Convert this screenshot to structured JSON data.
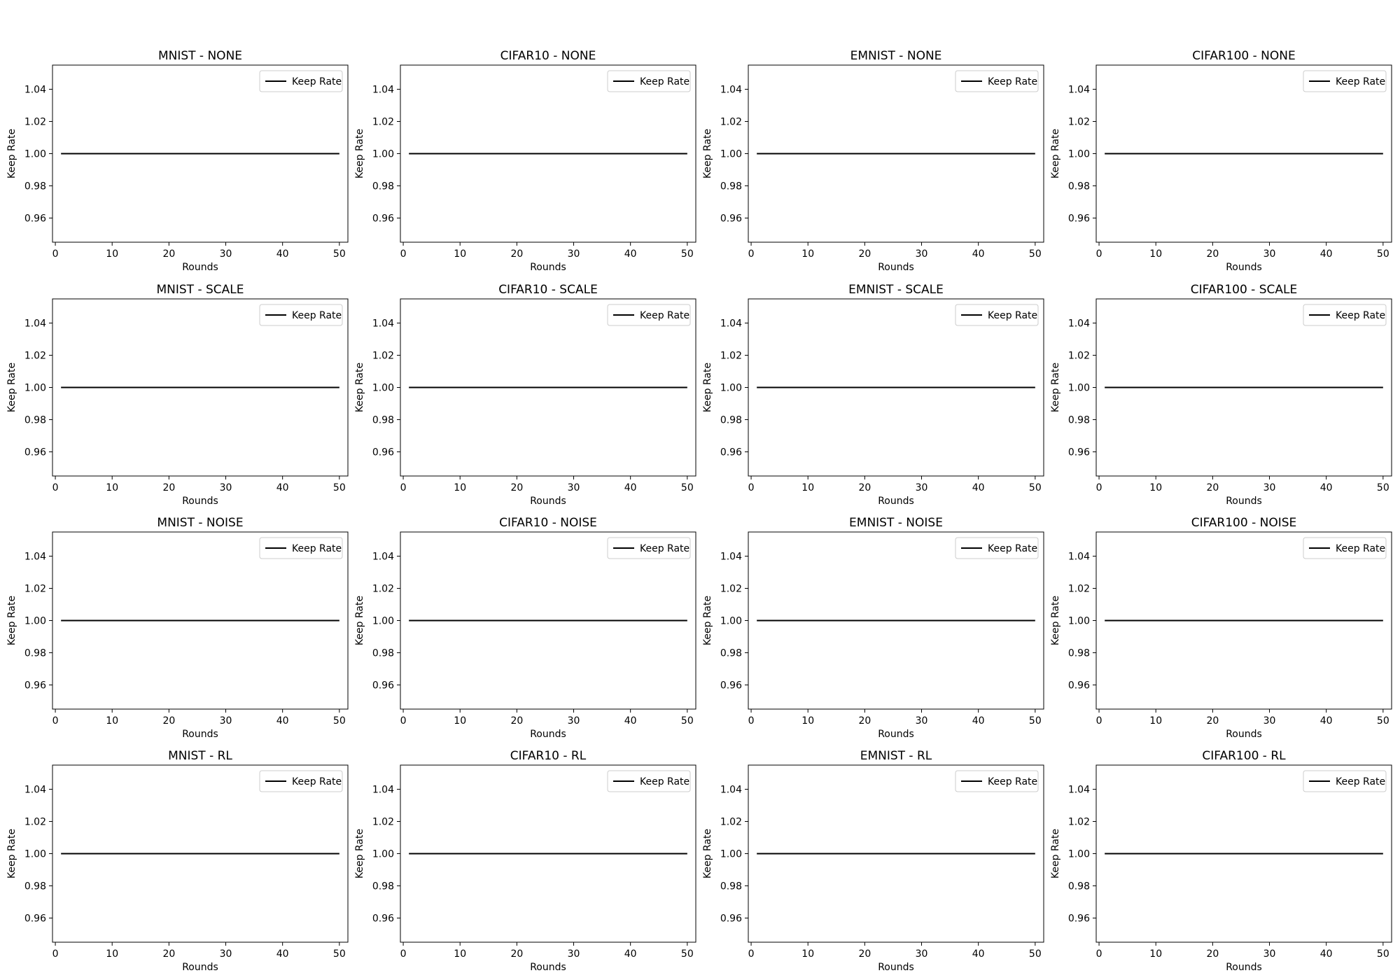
{
  "figure": {
    "background": "#ffffff",
    "line_color": "#000000"
  },
  "chart_data": [
    {
      "type": "line",
      "title": "MNIST - NONE",
      "xlabel": "Rounds",
      "ylabel": "Keep Rate",
      "xlim": [
        -0.5,
        51.5
      ],
      "ylim": [
        0.945,
        1.055
      ],
      "xticks": [
        "0",
        "10",
        "20",
        "30",
        "40",
        "50"
      ],
      "yticks": [
        "0.96",
        "0.98",
        "1.00",
        "1.02",
        "1.04"
      ],
      "legend": "top-right",
      "grid": false,
      "series": [
        {
          "name": "Keep Rate",
          "x": [
            1,
            50
          ],
          "y": [
            1.0,
            1.0
          ],
          "color": "#000000",
          "note_x_range": "rounds 1 to 50"
        }
      ]
    },
    {
      "type": "line",
      "title": "CIFAR10 - NONE",
      "xlabel": "Rounds",
      "ylabel": "Keep Rate",
      "xlim": [
        -0.5,
        51.5
      ],
      "ylim": [
        0.945,
        1.055
      ],
      "xticks": [
        "0",
        "10",
        "20",
        "30",
        "40",
        "50"
      ],
      "yticks": [
        "0.96",
        "0.98",
        "1.00",
        "1.02",
        "1.04"
      ],
      "legend": "top-right",
      "grid": false,
      "series": [
        {
          "name": "Keep Rate",
          "x": [
            1,
            50
          ],
          "y": [
            1.0,
            1.0
          ],
          "color": "#000000"
        }
      ]
    },
    {
      "type": "line",
      "title": "EMNIST - NONE",
      "xlabel": "Rounds",
      "ylabel": "Keep Rate",
      "xlim": [
        -0.5,
        51.5
      ],
      "ylim": [
        0.945,
        1.055
      ],
      "xticks": [
        "0",
        "10",
        "20",
        "30",
        "40",
        "50"
      ],
      "yticks": [
        "0.96",
        "0.98",
        "1.00",
        "1.02",
        "1.04"
      ],
      "legend": "top-right",
      "grid": false,
      "series": [
        {
          "name": "Keep Rate",
          "x": [
            1,
            50
          ],
          "y": [
            1.0,
            1.0
          ],
          "color": "#000000"
        }
      ]
    },
    {
      "type": "line",
      "title": "CIFAR100 - NONE",
      "xlabel": "Rounds",
      "ylabel": "Keep Rate",
      "xlim": [
        -0.5,
        51.5
      ],
      "ylim": [
        0.945,
        1.055
      ],
      "xticks": [
        "0",
        "10",
        "20",
        "30",
        "40",
        "50"
      ],
      "yticks": [
        "0.96",
        "0.98",
        "1.00",
        "1.02",
        "1.04"
      ],
      "legend": "top-right",
      "grid": false,
      "series": [
        {
          "name": "Keep Rate",
          "x": [
            1,
            50
          ],
          "y": [
            1.0,
            1.0
          ],
          "color": "#000000"
        }
      ]
    },
    {
      "type": "line",
      "title": "MNIST - SCALE",
      "xlabel": "Rounds",
      "ylabel": "Keep Rate",
      "xlim": [
        -0.5,
        51.5
      ],
      "ylim": [
        0.945,
        1.055
      ],
      "xticks": [
        "0",
        "10",
        "20",
        "30",
        "40",
        "50"
      ],
      "yticks": [
        "0.96",
        "0.98",
        "1.00",
        "1.02",
        "1.04"
      ],
      "legend": "top-right",
      "grid": false,
      "series": [
        {
          "name": "Keep Rate",
          "x": [
            1,
            50
          ],
          "y": [
            1.0,
            1.0
          ],
          "color": "#000000"
        }
      ]
    },
    {
      "type": "line",
      "title": "CIFAR10 - SCALE",
      "xlabel": "Rounds",
      "ylabel": "Keep Rate",
      "xlim": [
        -0.5,
        51.5
      ],
      "ylim": [
        0.945,
        1.055
      ],
      "xticks": [
        "0",
        "10",
        "20",
        "30",
        "40",
        "50"
      ],
      "yticks": [
        "0.96",
        "0.98",
        "1.00",
        "1.02",
        "1.04"
      ],
      "legend": "top-right",
      "grid": false,
      "series": [
        {
          "name": "Keep Rate",
          "x": [
            1,
            50
          ],
          "y": [
            1.0,
            1.0
          ],
          "color": "#000000"
        }
      ]
    },
    {
      "type": "line",
      "title": "EMNIST - SCALE",
      "xlabel": "Rounds",
      "ylabel": "Keep Rate",
      "xlim": [
        -0.5,
        51.5
      ],
      "ylim": [
        0.945,
        1.055
      ],
      "xticks": [
        "0",
        "10",
        "20",
        "30",
        "40",
        "50"
      ],
      "yticks": [
        "0.96",
        "0.98",
        "1.00",
        "1.02",
        "1.04"
      ],
      "legend": "top-right",
      "grid": false,
      "series": [
        {
          "name": "Keep Rate",
          "x": [
            1,
            50
          ],
          "y": [
            1.0,
            1.0
          ],
          "color": "#000000"
        }
      ]
    },
    {
      "type": "line",
      "title": "CIFAR100 - SCALE",
      "xlabel": "Rounds",
      "ylabel": "Keep Rate",
      "xlim": [
        -0.5,
        51.5
      ],
      "ylim": [
        0.945,
        1.055
      ],
      "xticks": [
        "0",
        "10",
        "20",
        "30",
        "40",
        "50"
      ],
      "yticks": [
        "0.96",
        "0.98",
        "1.00",
        "1.02",
        "1.04"
      ],
      "legend": "top-right",
      "grid": false,
      "series": [
        {
          "name": "Keep Rate",
          "x": [
            1,
            50
          ],
          "y": [
            1.0,
            1.0
          ],
          "color": "#000000"
        }
      ]
    },
    {
      "type": "line",
      "title": "MNIST - NOISE",
      "xlabel": "Rounds",
      "ylabel": "Keep Rate",
      "xlim": [
        -0.5,
        51.5
      ],
      "ylim": [
        0.945,
        1.055
      ],
      "xticks": [
        "0",
        "10",
        "20",
        "30",
        "40",
        "50"
      ],
      "yticks": [
        "0.96",
        "0.98",
        "1.00",
        "1.02",
        "1.04"
      ],
      "legend": "top-right",
      "grid": false,
      "series": [
        {
          "name": "Keep Rate",
          "x": [
            1,
            50
          ],
          "y": [
            1.0,
            1.0
          ],
          "color": "#000000"
        }
      ]
    },
    {
      "type": "line",
      "title": "CIFAR10 - NOISE",
      "xlabel": "Rounds",
      "ylabel": "Keep Rate",
      "xlim": [
        -0.5,
        51.5
      ],
      "ylim": [
        0.945,
        1.055
      ],
      "xticks": [
        "0",
        "10",
        "20",
        "30",
        "40",
        "50"
      ],
      "yticks": [
        "0.96",
        "0.98",
        "1.00",
        "1.02",
        "1.04"
      ],
      "legend": "top-right",
      "grid": false,
      "series": [
        {
          "name": "Keep Rate",
          "x": [
            1,
            50
          ],
          "y": [
            1.0,
            1.0
          ],
          "color": "#000000"
        }
      ]
    },
    {
      "type": "line",
      "title": "EMNIST - NOISE",
      "xlabel": "Rounds",
      "ylabel": "Keep Rate",
      "xlim": [
        -0.5,
        51.5
      ],
      "ylim": [
        0.945,
        1.055
      ],
      "xticks": [
        "0",
        "10",
        "20",
        "30",
        "40",
        "50"
      ],
      "yticks": [
        "0.96",
        "0.98",
        "1.00",
        "1.02",
        "1.04"
      ],
      "legend": "top-right",
      "grid": false,
      "series": [
        {
          "name": "Keep Rate",
          "x": [
            1,
            50
          ],
          "y": [
            1.0,
            1.0
          ],
          "color": "#000000"
        }
      ]
    },
    {
      "type": "line",
      "title": "CIFAR100 - NOISE",
      "xlabel": "Rounds",
      "ylabel": "Keep Rate",
      "xlim": [
        -0.5,
        51.5
      ],
      "ylim": [
        0.945,
        1.055
      ],
      "xticks": [
        "0",
        "10",
        "20",
        "30",
        "40",
        "50"
      ],
      "yticks": [
        "0.96",
        "0.98",
        "1.00",
        "1.02",
        "1.04"
      ],
      "legend": "top-right",
      "grid": false,
      "series": [
        {
          "name": "Keep Rate",
          "x": [
            1,
            50
          ],
          "y": [
            1.0,
            1.0
          ],
          "color": "#000000"
        }
      ]
    },
    {
      "type": "line",
      "title": "MNIST - RL",
      "xlabel": "Rounds",
      "ylabel": "Keep Rate",
      "xlim": [
        -0.5,
        51.5
      ],
      "ylim": [
        0.945,
        1.055
      ],
      "xticks": [
        "0",
        "10",
        "20",
        "30",
        "40",
        "50"
      ],
      "yticks": [
        "0.96",
        "0.98",
        "1.00",
        "1.02",
        "1.04"
      ],
      "legend": "top-right",
      "grid": false,
      "series": [
        {
          "name": "Keep Rate",
          "x": [
            1,
            50
          ],
          "y": [
            1.0,
            1.0
          ],
          "color": "#000000"
        }
      ]
    },
    {
      "type": "line",
      "title": "CIFAR10 - RL",
      "xlabel": "Rounds",
      "ylabel": "Keep Rate",
      "xlim": [
        -0.5,
        51.5
      ],
      "ylim": [
        0.945,
        1.055
      ],
      "xticks": [
        "0",
        "10",
        "20",
        "30",
        "40",
        "50"
      ],
      "yticks": [
        "0.96",
        "0.98",
        "1.00",
        "1.02",
        "1.04"
      ],
      "legend": "top-right",
      "grid": false,
      "series": [
        {
          "name": "Keep Rate",
          "x": [
            1,
            50
          ],
          "y": [
            1.0,
            1.0
          ],
          "color": "#000000"
        }
      ]
    },
    {
      "type": "line",
      "title": "EMNIST - RL",
      "xlabel": "Rounds",
      "ylabel": "Keep Rate",
      "xlim": [
        -0.5,
        51.5
      ],
      "ylim": [
        0.945,
        1.055
      ],
      "xticks": [
        "0",
        "10",
        "20",
        "30",
        "40",
        "50"
      ],
      "yticks": [
        "0.96",
        "0.98",
        "1.00",
        "1.02",
        "1.04"
      ],
      "legend": "top-right",
      "grid": false,
      "series": [
        {
          "name": "Keep Rate",
          "x": [
            1,
            50
          ],
          "y": [
            1.0,
            1.0
          ],
          "color": "#000000"
        }
      ]
    },
    {
      "type": "line",
      "title": "CIFAR100 - RL",
      "xlabel": "Rounds",
      "ylabel": "Keep Rate",
      "xlim": [
        -0.5,
        51.5
      ],
      "ylim": [
        0.945,
        1.055
      ],
      "xticks": [
        "0",
        "10",
        "20",
        "30",
        "40",
        "50"
      ],
      "yticks": [
        "0.96",
        "0.98",
        "1.00",
        "1.02",
        "1.04"
      ],
      "legend": "top-right",
      "grid": false,
      "series": [
        {
          "name": "Keep Rate",
          "x": [
            1,
            50
          ],
          "y": [
            1.0,
            1.0
          ],
          "color": "#000000"
        }
      ]
    }
  ]
}
